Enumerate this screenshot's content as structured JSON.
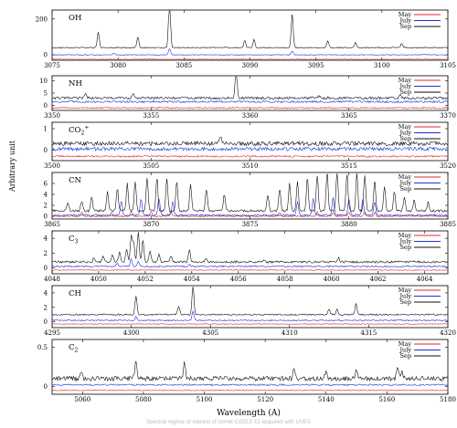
{
  "ylabel": "Arbitrary unit",
  "xlabel": "Wavelength (A)",
  "caption": "Spectral regime of interest of comet C/2013 X2 acquired with UVES",
  "colors": {
    "May": "#e8232a",
    "July": "#1f2fe0",
    "Sep": "#111111"
  },
  "chart_data": [
    {
      "type": "line",
      "name": "OH",
      "xlim": [
        3075,
        3105
      ],
      "xticks": [
        3075,
        3080,
        3085,
        3090,
        3095,
        3100,
        3105
      ],
      "ylim": [
        -30,
        250
      ],
      "yticks": [
        0,
        200
      ],
      "legend": "top-right",
      "series": [
        {
          "name": "May",
          "baseline": -25,
          "noise": 2,
          "lines": []
        },
        {
          "name": "July",
          "baseline": 0,
          "noise": 2,
          "lines": [
            [
              3079.7,
              10
            ],
            [
              3083.9,
              35
            ],
            [
              3093.2,
              20
            ]
          ]
        },
        {
          "name": "Sep",
          "baseline": 40,
          "noise": 3,
          "lines": [
            [
              3078.5,
              90
            ],
            [
              3081.5,
              60
            ],
            [
              3083.9,
              280
            ],
            [
              3089.6,
              40
            ],
            [
              3090.3,
              45
            ],
            [
              3093.2,
              190
            ],
            [
              3095.9,
              40
            ],
            [
              3098.0,
              30
            ],
            [
              3101.5,
              25
            ]
          ]
        }
      ]
    },
    {
      "type": "line",
      "name": "NH",
      "xlim": [
        3350,
        3370
      ],
      "xticks": [
        3350,
        3355,
        3360,
        3365,
        3370
      ],
      "ylim": [
        -2,
        12
      ],
      "yticks": [
        0,
        5,
        10
      ],
      "legend": "top-right",
      "series": [
        {
          "name": "May",
          "baseline": -1,
          "noise": 0.3,
          "lines": []
        },
        {
          "name": "July",
          "baseline": 1.5,
          "noise": 0.4,
          "lines": []
        },
        {
          "name": "Sep",
          "baseline": 3,
          "noise": 0.5,
          "lines": [
            [
              3351.7,
              2
            ],
            [
              3354.1,
              1.5
            ],
            [
              3359.3,
              12
            ],
            [
              3363.5,
              1
            ],
            [
              3367.6,
              1.5
            ]
          ]
        }
      ]
    },
    {
      "type": "line",
      "name": "CO2+",
      "xlim": [
        3500,
        3520
      ],
      "xticks": [
        3500,
        3505,
        3510,
        3515,
        3520
      ],
      "ylim": [
        -0.5,
        1.3
      ],
      "yticks": [
        0,
        1
      ],
      "legend": "top-right",
      "series": [
        {
          "name": "May",
          "baseline": -0.3,
          "noise": 0.04,
          "lines": []
        },
        {
          "name": "July",
          "baseline": 0.05,
          "noise": 0.08,
          "lines": []
        },
        {
          "name": "Sep",
          "baseline": 0.3,
          "noise": 0.1,
          "lines": [
            [
              3508.5,
              0.4
            ]
          ]
        }
      ]
    },
    {
      "type": "line",
      "name": "CN",
      "xlim": [
        3865,
        3885
      ],
      "xticks": [
        3865,
        3870,
        3875,
        3880,
        3885
      ],
      "ylim": [
        -0.5,
        8
      ],
      "yticks": [
        0,
        2,
        4,
        6
      ],
      "legend": "top-right",
      "series": [
        {
          "name": "May",
          "baseline": 0,
          "noise": 0.1,
          "lines": [
            [
              3866.5,
              0.8
            ],
            [
              3868,
              0.7
            ],
            [
              3869,
              0.8
            ],
            [
              3870,
              0.9
            ],
            [
              3871,
              0.8
            ],
            [
              3876.5,
              0.7
            ],
            [
              3878.4,
              0.8
            ],
            [
              3879.2,
              0.7
            ],
            [
              3880,
              0.8
            ],
            [
              3880.8,
              0.8
            ],
            [
              3881.3,
              0.7
            ]
          ]
        },
        {
          "name": "July",
          "baseline": 0.2,
          "noise": 0.15,
          "lines": [
            [
              3868.5,
              2.5
            ],
            [
              3869.5,
              3
            ],
            [
              3870.4,
              3
            ],
            [
              3871.1,
              2.5
            ],
            [
              3877.4,
              2.5
            ],
            [
              3878.2,
              3
            ],
            [
              3879.2,
              3.2
            ],
            [
              3880,
              3
            ],
            [
              3880.7,
              3
            ],
            [
              3881.3,
              2.5
            ]
          ]
        },
        {
          "name": "Sep",
          "baseline": 1,
          "noise": 0.2,
          "lines": [
            [
              3865.8,
              1.5
            ],
            [
              3866.5,
              1.8
            ],
            [
              3867,
              2.5
            ],
            [
              3867.8,
              3.5
            ],
            [
              3868.3,
              4
            ],
            [
              3868.8,
              5
            ],
            [
              3869.2,
              5.5
            ],
            [
              3869.8,
              6
            ],
            [
              3870.3,
              6.2
            ],
            [
              3870.8,
              6
            ],
            [
              3871.3,
              5.5
            ],
            [
              3872,
              5
            ],
            [
              3872.8,
              4
            ],
            [
              3873.7,
              3
            ],
            [
              3875.9,
              3
            ],
            [
              3876.5,
              4
            ],
            [
              3877,
              5
            ],
            [
              3877.4,
              5.5
            ],
            [
              3877.9,
              6
            ],
            [
              3878.4,
              6.5
            ],
            [
              3878.9,
              7
            ],
            [
              3879.4,
              7.2
            ],
            [
              3879.9,
              7
            ],
            [
              3880.4,
              7
            ],
            [
              3880.8,
              6.5
            ],
            [
              3881.3,
              5.5
            ],
            [
              3881.8,
              4.5
            ],
            [
              3882.3,
              3.5
            ],
            [
              3882.8,
              2.5
            ],
            [
              3883.3,
              2
            ],
            [
              3884,
              1.5
            ]
          ]
        }
      ]
    },
    {
      "type": "line",
      "name": "C3",
      "xlim": [
        4048,
        4065
      ],
      "xticks": [
        4048,
        4050,
        4052,
        4054,
        4056,
        4058,
        4060,
        4062,
        4064
      ],
      "ylim": [
        -0.8,
        5
      ],
      "yticks": [
        0,
        2,
        4
      ],
      "legend": "top-right",
      "series": [
        {
          "name": "May",
          "baseline": -0.3,
          "noise": 0.05,
          "lines": []
        },
        {
          "name": "July",
          "baseline": 0.2,
          "noise": 0.1,
          "lines": [
            [
              4050.8,
              0.5
            ],
            [
              4051.4,
              0.9
            ],
            [
              4051.7,
              0.7
            ],
            [
              4053.9,
              0.3
            ]
          ]
        },
        {
          "name": "Sep",
          "baseline": 0.8,
          "noise": 0.15,
          "lines": [
            [
              4049.8,
              0.5
            ],
            [
              4050.2,
              0.8
            ],
            [
              4050.6,
              1
            ],
            [
              4050.9,
              1.3
            ],
            [
              4051.2,
              1.8
            ],
            [
              4051.4,
              3.5
            ],
            [
              4051.5,
              2.5
            ],
            [
              4051.7,
              4
            ],
            [
              4051.9,
              3
            ],
            [
              4052.2,
              1.5
            ],
            [
              4052.6,
              1
            ],
            [
              4053.1,
              0.8
            ],
            [
              4053.9,
              1.6
            ],
            [
              4054.6,
              0.5
            ],
            [
              4057.1,
              0.4
            ],
            [
              4060.3,
              0.5
            ]
          ]
        }
      ]
    },
    {
      "type": "line",
      "name": "CH",
      "xlim": [
        4295,
        4320
      ],
      "xticks": [
        4295,
        4300,
        4305,
        4310,
        4315,
        4320
      ],
      "ylim": [
        -0.8,
        5
      ],
      "yticks": [
        0,
        2,
        4
      ],
      "legend": "top-right",
      "series": [
        {
          "name": "May",
          "baseline": -0.3,
          "noise": 0.05,
          "lines": []
        },
        {
          "name": "July",
          "baseline": 0.2,
          "noise": 0.08,
          "lines": [
            [
              4300.3,
              0.5
            ],
            [
              4303.9,
              1.2
            ]
          ]
        },
        {
          "name": "Sep",
          "baseline": 1,
          "noise": 0.1,
          "lines": [
            [
              4300.3,
              2.5
            ],
            [
              4303,
              1.2
            ],
            [
              4303.9,
              4
            ],
            [
              4312.5,
              0.8
            ],
            [
              4313,
              0.7
            ],
            [
              4314.2,
              1.5
            ]
          ]
        }
      ]
    },
    {
      "type": "line",
      "name": "C2",
      "xlim": [
        5050,
        5180
      ],
      "xticks": [
        5060,
        5080,
        5100,
        5120,
        5140,
        5160,
        5180
      ],
      "ylim": [
        -0.1,
        0.6
      ],
      "yticks": [
        0,
        0.5
      ],
      "legend": "top-right",
      "xlabel": "Wavelength (A)",
      "series": [
        {
          "name": "May",
          "baseline": -0.05,
          "noise": 0.005,
          "lines": []
        },
        {
          "name": "July",
          "baseline": 0.02,
          "noise": 0.01,
          "lines": []
        },
        {
          "name": "Sep",
          "baseline": 0.1,
          "noise": 0.03,
          "lines": [
            [
              5059.5,
              0.1
            ],
            [
              5077.5,
              0.25
            ],
            [
              5093.5,
              0.2
            ],
            [
              5129.5,
              0.15
            ],
            [
              5140,
              0.12
            ],
            [
              5150,
              0.1
            ],
            [
              5163.5,
              0.15
            ],
            [
              5165,
              0.1
            ]
          ]
        }
      ]
    }
  ],
  "panel_labels": [
    "OH",
    "NH",
    "CO2+",
    "CN",
    "C3",
    "CH",
    "C2"
  ],
  "legend_labels": [
    "May",
    "July",
    "Sep"
  ]
}
